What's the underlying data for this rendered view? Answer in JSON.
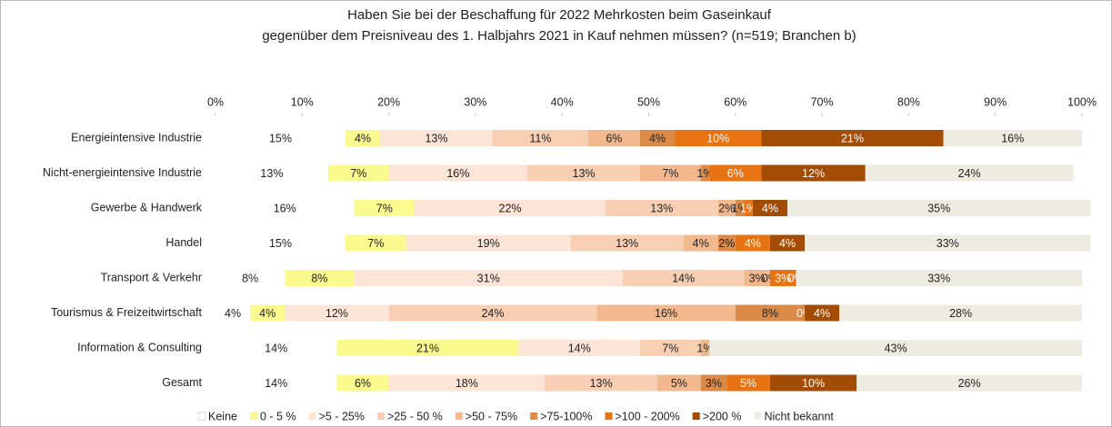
{
  "chart_data": {
    "type": "stacked-barh",
    "title": [
      "Haben Sie bei der Beschaffung für 2022 Mehrkosten beim Gaseinkauf",
      "gegenüber dem Preisniveau des 1. Halbjahrs 2021 in Kauf nehmen müssen? (n=519; Branchen b)"
    ],
    "categories": [
      "Energieintensive Industrie",
      "Nicht-energieintensive Industrie",
      "Gewerbe & Handwerk",
      "Handel",
      "Transport & Verkehr",
      "Tourismus & Freizeitwirtschaft",
      "Information & Consulting",
      "Gesamt"
    ],
    "series": [
      {
        "name": "Keine",
        "color": "#ffffff",
        "values": [
          15,
          13,
          16,
          15,
          8,
          4,
          14,
          14
        ],
        "value_labels": [
          "15%",
          "13%",
          "16%",
          "15%",
          "8%",
          "4%",
          "14%",
          "14%"
        ]
      },
      {
        "name": "0 - 5 %",
        "color": "#fafa8e",
        "values": [
          4,
          7,
          7,
          7,
          8,
          4,
          21,
          6
        ],
        "value_labels": [
          "4%",
          "7%",
          "7%",
          "7%",
          "8%",
          "4%",
          "21%",
          "6%"
        ]
      },
      {
        "name": ">5 - 25%",
        "color": "#fce4d6",
        "values": [
          13,
          16,
          22,
          19,
          31,
          12,
          14,
          18
        ],
        "value_labels": [
          "13%",
          "16%",
          "22%",
          "19%",
          "31%",
          "12%",
          "14%",
          "18%"
        ]
      },
      {
        "name": ">25 - 50 %",
        "color": "#f8cfb2",
        "values": [
          11,
          13,
          13,
          13,
          14,
          24,
          7,
          13
        ],
        "value_labels": [
          "11%",
          "13%",
          "13%",
          "13%",
          "14%",
          "24%",
          "7%",
          "13%"
        ]
      },
      {
        "name": ">50 - 75%",
        "color": "#f2b88e",
        "values": [
          6,
          7,
          2,
          4,
          3,
          16,
          1,
          5
        ],
        "value_labels": [
          "6%",
          "7%",
          "2%",
          "4%",
          "3%",
          "16%",
          "1%",
          "5%"
        ]
      },
      {
        "name": ">75-100%",
        "color": "#dc8a48",
        "values": [
          4,
          1,
          1,
          2,
          0,
          8,
          null,
          3
        ],
        "value_labels": [
          "4%",
          "1%",
          "1%",
          "2%",
          "0%",
          "8%",
          null,
          "3%"
        ]
      },
      {
        "name": ">100 - 200%",
        "color": "#e87312",
        "values": [
          10,
          6,
          1,
          4,
          3,
          0,
          null,
          5
        ],
        "value_labels": [
          "10%",
          "6%",
          "1%",
          "4%",
          "3%",
          "0%",
          null,
          "5%"
        ]
      },
      {
        "name": ">200 %",
        "color": "#a24c06",
        "values": [
          21,
          12,
          4,
          4,
          0,
          4,
          null,
          10
        ],
        "value_labels": [
          "21%",
          "12%",
          "4%",
          "4%",
          "0%",
          "4%",
          null,
          "10%"
        ]
      },
      {
        "name": "Nicht bekannt",
        "color": "#eeece1",
        "values": [
          16,
          24,
          35,
          33,
          33,
          28,
          43,
          26
        ],
        "value_labels": [
          "16%",
          "24%",
          "35%",
          "33%",
          "33%",
          "28%",
          "43%",
          "26%"
        ]
      }
    ],
    "xlim": [
      0,
      100
    ],
    "xticks": [
      {
        "value": 0,
        "label": "0%"
      },
      {
        "value": 10,
        "label": "10%"
      },
      {
        "value": 20,
        "label": "20%"
      },
      {
        "value": 30,
        "label": "30%"
      },
      {
        "value": 40,
        "label": "40%"
      },
      {
        "value": 50,
        "label": "50%"
      },
      {
        "value": 60,
        "label": "60%"
      },
      {
        "value": 70,
        "label": "70%"
      },
      {
        "value": 80,
        "label": "80%"
      },
      {
        "value": 90,
        "label": "90%"
      },
      {
        "value": 100,
        "label": "100%"
      }
    ],
    "legend": "bottom"
  }
}
